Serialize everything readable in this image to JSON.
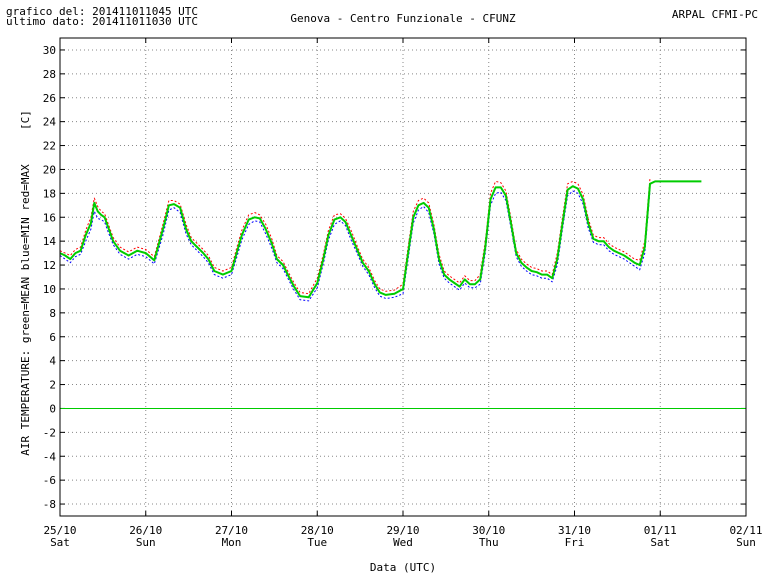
{
  "header": {
    "line1": "grafico del: 201411011045 UTC",
    "line2": "ultimo dato: 201411011030 UTC",
    "station": "Genova - Centro Funzionale - CFUNZ",
    "org": "ARPAL CFMI-PC"
  },
  "chart_data": {
    "type": "line",
    "xlabel": "Data (UTC)",
    "ylabel": "AIR TEMPERATURE: green=MEAN  blue=MIN  red=MAX",
    "unit_label": "[C]",
    "ylim": [
      -9,
      31
    ],
    "yticks": [
      30,
      28,
      26,
      24,
      22,
      20,
      18,
      16,
      14,
      12,
      10,
      8,
      6,
      4,
      2,
      0,
      -2,
      -4,
      -6,
      -8
    ],
    "xlim_days": [
      0,
      8
    ],
    "x_ticks": [
      {
        "date": "25/10",
        "day": "Sat"
      },
      {
        "date": "26/10",
        "day": "Sun"
      },
      {
        "date": "27/10",
        "day": "Mon"
      },
      {
        "date": "28/10",
        "day": "Tue"
      },
      {
        "date": "29/10",
        "day": "Wed"
      },
      {
        "date": "30/10",
        "day": "Thu"
      },
      {
        "date": "31/10",
        "day": "Fri"
      },
      {
        "date": "01/11",
        "day": "Sat"
      },
      {
        "date": "02/11",
        "day": "Sun"
      }
    ],
    "grid": true,
    "zero_line": true,
    "colors": {
      "mean": "#00cc00",
      "min": "#0000ff",
      "max": "#ff0000",
      "grid": "#888888"
    },
    "series": [
      {
        "name": "MEAN",
        "x": [
          0.0,
          0.06,
          0.12,
          0.18,
          0.24,
          0.3,
          0.36,
          0.4,
          0.44,
          0.48,
          0.52,
          0.56,
          0.62,
          0.7,
          0.8,
          0.9,
          1.0,
          1.1,
          1.2,
          1.27,
          1.33,
          1.4,
          1.47,
          1.53,
          1.6,
          1.67,
          1.73,
          1.8,
          1.9,
          2.0,
          2.06,
          2.12,
          2.2,
          2.27,
          2.33,
          2.4,
          2.47,
          2.53,
          2.6,
          2.67,
          2.73,
          2.8,
          2.9,
          3.0,
          3.07,
          3.13,
          3.2,
          3.27,
          3.33,
          3.4,
          3.47,
          3.53,
          3.6,
          3.67,
          3.73,
          3.8,
          3.9,
          4.0,
          4.06,
          4.12,
          4.18,
          4.24,
          4.3,
          4.36,
          4.42,
          4.48,
          4.54,
          4.6,
          4.66,
          4.72,
          4.78,
          4.84,
          4.9,
          4.96,
          5.02,
          5.08,
          5.14,
          5.2,
          5.26,
          5.32,
          5.38,
          5.44,
          5.5,
          5.56,
          5.62,
          5.68,
          5.74,
          5.8,
          5.86,
          5.92,
          5.98,
          6.04,
          6.1,
          6.16,
          6.22,
          6.28,
          6.34,
          6.4,
          6.46,
          6.52,
          6.58,
          6.64,
          6.7,
          6.76,
          6.82,
          6.88,
          6.94,
          7.0,
          7.06,
          7.12,
          7.18,
          7.24,
          7.3,
          7.36,
          7.42,
          7.48
        ],
        "values": [
          13.0,
          12.8,
          12.5,
          13.0,
          13.2,
          14.5,
          15.5,
          17.2,
          16.5,
          16.2,
          16.0,
          15.2,
          14.0,
          13.2,
          12.8,
          13.2,
          13.0,
          12.4,
          15.0,
          17.0,
          17.1,
          16.8,
          15.0,
          14.0,
          13.5,
          13.0,
          12.5,
          11.5,
          11.2,
          11.5,
          13.0,
          14.5,
          15.8,
          16.0,
          15.9,
          15.0,
          13.8,
          12.5,
          12.0,
          11.0,
          10.2,
          9.4,
          9.3,
          10.5,
          12.5,
          14.5,
          15.8,
          16.0,
          15.6,
          14.4,
          13.2,
          12.2,
          11.5,
          10.4,
          9.7,
          9.5,
          9.6,
          10.0,
          13.0,
          16.0,
          17.0,
          17.2,
          16.8,
          15.0,
          12.5,
          11.2,
          10.8,
          10.5,
          10.2,
          10.8,
          10.4,
          10.4,
          10.8,
          13.5,
          17.5,
          18.5,
          18.5,
          17.8,
          15.5,
          13.0,
          12.2,
          11.8,
          11.5,
          11.4,
          11.2,
          11.2,
          10.9,
          12.5,
          15.5,
          18.3,
          18.6,
          18.4,
          17.5,
          15.5,
          14.2,
          14.0,
          14.0,
          13.5,
          13.2,
          13.0,
          12.8,
          12.5,
          12.2,
          12.0,
          13.5,
          18.8,
          19.0,
          19.0,
          19.0,
          19.0,
          19.0,
          19.0,
          19.0,
          19.0,
          19.0,
          19.0
        ]
      },
      {
        "name": "MIN",
        "x": [
          0.0,
          0.06,
          0.12,
          0.18,
          0.24,
          0.3,
          0.36,
          0.4,
          0.44,
          0.48,
          0.52,
          0.56,
          0.62,
          0.7,
          0.8,
          0.9,
          1.0,
          1.1,
          1.2,
          1.27,
          1.33,
          1.4,
          1.47,
          1.53,
          1.6,
          1.67,
          1.73,
          1.8,
          1.9,
          2.0,
          2.06,
          2.12,
          2.2,
          2.27,
          2.33,
          2.4,
          2.47,
          2.53,
          2.6,
          2.67,
          2.73,
          2.8,
          2.9,
          3.0,
          3.07,
          3.13,
          3.2,
          3.27,
          3.33,
          3.4,
          3.47,
          3.53,
          3.6,
          3.67,
          3.73,
          3.8,
          3.9,
          4.0,
          4.06,
          4.12,
          4.18,
          4.24,
          4.3,
          4.36,
          4.42,
          4.48,
          4.54,
          4.6,
          4.66,
          4.72,
          4.78,
          4.84,
          4.9,
          4.96,
          5.02,
          5.08,
          5.14,
          5.2,
          5.26,
          5.32,
          5.38,
          5.44,
          5.5,
          5.56,
          5.62,
          5.68,
          5.74,
          5.8,
          5.86,
          5.92,
          5.98,
          6.04,
          6.1,
          6.16,
          6.22,
          6.28,
          6.34,
          6.4,
          6.46,
          6.52,
          6.58,
          6.64,
          6.7,
          6.76,
          6.82,
          6.88
        ],
        "values": [
          12.8,
          12.5,
          12.2,
          12.7,
          12.9,
          14.0,
          15.0,
          16.5,
          15.9,
          15.8,
          15.6,
          14.8,
          13.7,
          12.9,
          12.5,
          12.9,
          12.7,
          12.1,
          14.5,
          16.6,
          16.8,
          16.4,
          14.6,
          13.7,
          13.2,
          12.7,
          12.2,
          11.2,
          10.9,
          11.2,
          12.6,
          14.1,
          15.4,
          15.7,
          15.6,
          14.6,
          13.4,
          12.2,
          11.7,
          10.7,
          9.9,
          9.1,
          9.0,
          10.1,
          12.1,
          14.1,
          15.4,
          15.7,
          15.3,
          14.0,
          12.9,
          11.9,
          11.2,
          10.1,
          9.4,
          9.2,
          9.3,
          9.6,
          12.5,
          15.5,
          16.6,
          16.9,
          16.4,
          14.6,
          12.1,
          10.9,
          10.5,
          10.2,
          9.9,
          10.5,
          10.1,
          10.1,
          10.4,
          13.0,
          17.0,
          18.0,
          18.1,
          17.4,
          15.1,
          12.7,
          11.9,
          11.5,
          11.2,
          11.1,
          10.9,
          10.9,
          10.6,
          12.0,
          15.0,
          17.8,
          18.2,
          18.0,
          17.1,
          15.1,
          13.9,
          13.7,
          13.7,
          13.2,
          12.9,
          12.7,
          12.5,
          12.2,
          11.9,
          11.6,
          13.0,
          18.3
        ]
      },
      {
        "name": "MAX",
        "x": [
          0.0,
          0.06,
          0.12,
          0.18,
          0.24,
          0.3,
          0.36,
          0.4,
          0.44,
          0.48,
          0.52,
          0.56,
          0.62,
          0.7,
          0.8,
          0.9,
          1.0,
          1.1,
          1.2,
          1.27,
          1.33,
          1.4,
          1.47,
          1.53,
          1.6,
          1.67,
          1.73,
          1.8,
          1.9,
          2.0,
          2.06,
          2.12,
          2.2,
          2.27,
          2.33,
          2.4,
          2.47,
          2.53,
          2.6,
          2.67,
          2.73,
          2.8,
          2.9,
          3.0,
          3.07,
          3.13,
          3.2,
          3.27,
          3.33,
          3.4,
          3.47,
          3.53,
          3.6,
          3.67,
          3.73,
          3.8,
          3.9,
          4.0,
          4.06,
          4.12,
          4.18,
          4.24,
          4.3,
          4.36,
          4.42,
          4.48,
          4.54,
          4.6,
          4.66,
          4.72,
          4.78,
          4.84,
          4.9,
          4.96,
          5.02,
          5.08,
          5.14,
          5.2,
          5.26,
          5.32,
          5.38,
          5.44,
          5.5,
          5.56,
          5.62,
          5.68,
          5.74,
          5.8,
          5.86,
          5.92,
          5.98,
          6.04,
          6.1,
          6.16,
          6.22,
          6.28,
          6.34,
          6.4,
          6.46,
          6.52,
          6.58,
          6.64,
          6.7,
          6.76,
          6.82,
          6.88
        ],
        "values": [
          13.2,
          13.0,
          12.8,
          13.3,
          13.5,
          14.9,
          16.0,
          17.6,
          16.9,
          16.5,
          16.3,
          15.5,
          14.3,
          13.5,
          13.1,
          13.5,
          13.3,
          12.7,
          15.4,
          17.4,
          17.4,
          17.1,
          15.4,
          14.3,
          13.8,
          13.3,
          12.8,
          11.8,
          11.5,
          11.8,
          13.4,
          14.9,
          16.2,
          16.4,
          16.2,
          15.4,
          14.2,
          12.8,
          12.3,
          11.3,
          10.5,
          9.7,
          9.6,
          10.9,
          12.9,
          14.9,
          16.2,
          16.3,
          15.9,
          14.8,
          13.5,
          12.5,
          11.8,
          10.7,
          10.0,
          9.8,
          9.9,
          10.4,
          13.5,
          16.5,
          17.4,
          17.6,
          17.2,
          15.4,
          12.9,
          11.5,
          11.1,
          10.8,
          10.5,
          11.1,
          10.7,
          10.7,
          11.2,
          14.0,
          18.0,
          19.0,
          18.9,
          18.2,
          15.9,
          13.3,
          12.5,
          12.1,
          11.8,
          11.7,
          11.5,
          11.5,
          11.2,
          13.0,
          16.0,
          18.8,
          19.0,
          18.8,
          17.9,
          15.9,
          14.5,
          14.3,
          14.3,
          13.8,
          13.5,
          13.3,
          13.1,
          12.8,
          12.5,
          12.4,
          14.0,
          19.3
        ]
      }
    ]
  }
}
